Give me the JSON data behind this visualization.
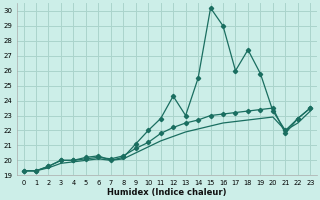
{
  "xlabel": "Humidex (Indice chaleur)",
  "bg_color": "#cceee8",
  "grid_color": "#aad4cc",
  "line_color": "#1a6e60",
  "xlim": [
    -0.5,
    23.5
  ],
  "ylim": [
    19,
    30.5
  ],
  "xticks": [
    0,
    1,
    2,
    3,
    4,
    5,
    6,
    7,
    8,
    9,
    10,
    11,
    12,
    13,
    14,
    15,
    16,
    17,
    18,
    19,
    20,
    21,
    22,
    23
  ],
  "yticks": [
    19,
    20,
    21,
    22,
    23,
    24,
    25,
    26,
    27,
    28,
    29,
    30
  ],
  "line1_x": [
    0,
    1,
    2,
    3,
    4,
    5,
    6,
    7,
    8,
    9,
    10,
    11,
    12,
    13,
    14,
    15,
    16,
    17,
    18,
    19,
    20,
    21,
    22,
    23
  ],
  "line1_y": [
    19.3,
    19.3,
    19.6,
    20.0,
    20.0,
    20.2,
    20.3,
    20.0,
    20.2,
    21.1,
    22.0,
    22.8,
    24.3,
    23.0,
    25.5,
    30.2,
    29.0,
    26.0,
    27.4,
    25.8,
    23.3,
    22.0,
    22.8,
    23.5
  ],
  "line2_x": [
    0,
    1,
    2,
    3,
    4,
    5,
    6,
    7,
    8,
    9,
    10,
    11,
    12,
    13,
    14,
    15,
    16,
    17,
    18,
    19,
    20,
    21,
    22,
    23
  ],
  "line2_y": [
    19.3,
    19.3,
    19.6,
    20.0,
    20.0,
    20.1,
    20.2,
    20.1,
    20.3,
    20.8,
    21.2,
    21.8,
    22.2,
    22.5,
    22.7,
    23.0,
    23.1,
    23.2,
    23.3,
    23.4,
    23.5,
    21.8,
    22.8,
    23.5
  ],
  "line3_x": [
    0,
    1,
    2,
    3,
    4,
    5,
    6,
    7,
    8,
    9,
    10,
    11,
    12,
    13,
    14,
    15,
    16,
    17,
    18,
    19,
    20,
    21,
    22,
    23
  ],
  "line3_y": [
    19.3,
    19.3,
    19.5,
    19.8,
    19.9,
    20.0,
    20.1,
    20.0,
    20.1,
    20.5,
    20.9,
    21.3,
    21.6,
    21.9,
    22.1,
    22.3,
    22.5,
    22.6,
    22.7,
    22.8,
    22.9,
    22.0,
    22.5,
    23.3
  ]
}
